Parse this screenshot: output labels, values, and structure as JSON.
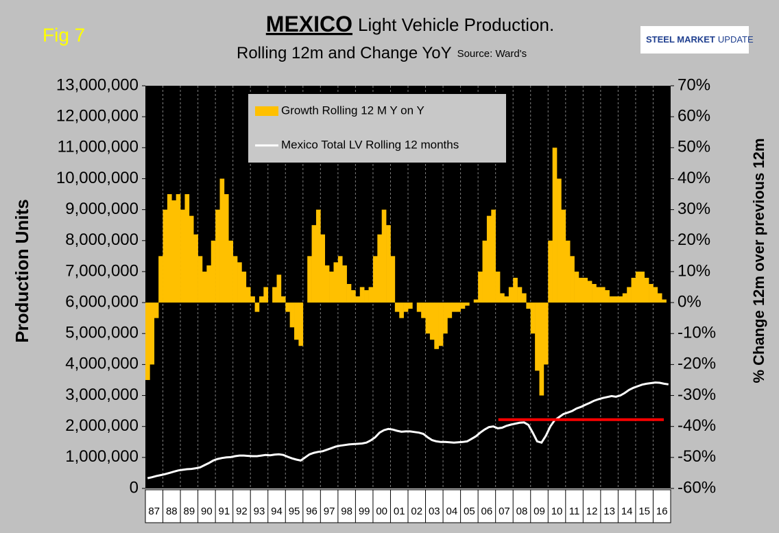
{
  "figure_label": "Fig 7",
  "logo": [
    "STEEL MARKET",
    "UPDATE"
  ],
  "chart_data": {
    "type": "combo",
    "title": [
      "MEXICO",
      "Light Vehicle Production."
    ],
    "subtitle": "Rolling 12m and Change YoY",
    "source": "Source: Ward's",
    "y_label": "Production Units",
    "y2_label": "% Change 12m over previous 12m",
    "categories": [
      "87",
      null,
      null,
      null,
      "88",
      null,
      null,
      null,
      "89",
      null,
      null,
      null,
      "90",
      null,
      null,
      null,
      "91",
      null,
      null,
      null,
      "92",
      null,
      null,
      null,
      "93",
      null,
      null,
      null,
      "94",
      null,
      null,
      null,
      "95",
      null,
      null,
      null,
      "96",
      null,
      null,
      null,
      "97",
      null,
      null,
      null,
      "98",
      null,
      null,
      null,
      "99",
      null,
      null,
      null,
      "00",
      null,
      null,
      null,
      "01",
      null,
      null,
      null,
      "02",
      null,
      null,
      null,
      "03",
      null,
      null,
      null,
      "04",
      null,
      null,
      null,
      "05",
      null,
      null,
      null,
      "06",
      null,
      null,
      null,
      "07",
      null,
      null,
      null,
      "08",
      null,
      null,
      null,
      "09",
      null,
      null,
      null,
      "10",
      null,
      null,
      null,
      "11",
      null,
      null,
      null,
      "12",
      null,
      null,
      null,
      "13",
      null,
      null,
      null,
      "14",
      null,
      null,
      null,
      "15",
      null,
      null,
      null,
      "16",
      null,
      null,
      null
    ],
    "series": [
      {
        "name": "Growth Rolling 12 M Y on Y",
        "type": "bar",
        "axis": "y2",
        "color": "#ffc000",
        "values": [
          -25,
          -20,
          -5,
          15,
          30,
          35,
          33,
          35,
          30,
          35,
          28,
          22,
          15,
          10,
          12,
          20,
          30,
          40,
          35,
          20,
          15,
          13,
          10,
          5,
          2,
          -3,
          2,
          5,
          0,
          5,
          9,
          2,
          -3,
          -8,
          -12,
          -14,
          0,
          15,
          25,
          30,
          22,
          12,
          10,
          13,
          15,
          12,
          6,
          4,
          2,
          5,
          4,
          5,
          15,
          22,
          30,
          25,
          15,
          -3,
          -5,
          -3,
          -2,
          0,
          -3,
          -5,
          -10,
          -12,
          -15,
          -14,
          -10,
          -5,
          -3,
          -3,
          -2,
          -1,
          0,
          1,
          10,
          20,
          28,
          30,
          10,
          3,
          2,
          5,
          8,
          5,
          3,
          -2,
          -10,
          -22,
          -30,
          -20,
          20,
          50,
          40,
          30,
          20,
          15,
          10,
          8,
          8,
          7,
          6,
          5,
          5,
          4,
          2,
          2,
          2,
          3,
          5,
          8,
          10,
          10,
          8,
          6,
          5,
          3,
          1,
          0
        ]
      },
      {
        "name": "Mexico Total LV Rolling 12 months",
        "type": "line",
        "color": "#ffffff",
        "values": [
          330000,
          360000,
          400000,
          430000,
          460000,
          500000,
          540000,
          580000,
          600000,
          620000,
          630000,
          650000,
          680000,
          750000,
          820000,
          900000,
          950000,
          980000,
          1000000,
          1010000,
          1040000,
          1060000,
          1060000,
          1050000,
          1040000,
          1040000,
          1060000,
          1080000,
          1070000,
          1090000,
          1100000,
          1080000,
          1020000,
          970000,
          930000,
          900000,
          1000000,
          1100000,
          1150000,
          1180000,
          1200000,
          1250000,
          1300000,
          1350000,
          1380000,
          1400000,
          1420000,
          1430000,
          1440000,
          1450000,
          1480000,
          1550000,
          1650000,
          1800000,
          1880000,
          1920000,
          1900000,
          1860000,
          1830000,
          1840000,
          1840000,
          1820000,
          1800000,
          1760000,
          1650000,
          1560000,
          1520000,
          1500000,
          1500000,
          1490000,
          1480000,
          1490000,
          1500000,
          1520000,
          1600000,
          1680000,
          1800000,
          1900000,
          1980000,
          2000000,
          1940000,
          1960000,
          2020000,
          2060000,
          2090000,
          2120000,
          2130000,
          2050000,
          1800000,
          1520000,
          1480000,
          1700000,
          2000000,
          2200000,
          2300000,
          2400000,
          2450000,
          2500000,
          2580000,
          2630000,
          2700000,
          2760000,
          2830000,
          2880000,
          2920000,
          2950000,
          2980000,
          2960000,
          3000000,
          3080000,
          3180000,
          3250000,
          3300000,
          3350000,
          3380000,
          3400000,
          3420000,
          3410000,
          3380000,
          3360000
        ]
      }
    ],
    "reference_lines": [
      {
        "value": 2220000,
        "color": "#ff0000"
      }
    ],
    "ylim": [
      0,
      13000000
    ],
    "yticks": [
      0,
      {
        "value": 1000000,
        "label": "1,000,000"
      },
      {
        "value": 2000000,
        "label": "2,000,000"
      },
      {
        "value": 3000000,
        "label": "3,000,000"
      },
      {
        "value": 4000000,
        "label": "4,000,000"
      },
      {
        "value": 5000000,
        "label": "5,000,000"
      },
      {
        "value": 6000000,
        "label": "6,000,000"
      },
      {
        "value": 7000000,
        "label": "7,000,000"
      },
      {
        "value": 8000000,
        "label": "8,000,000"
      },
      {
        "value": 9000000,
        "label": "9,000,000"
      },
      {
        "value": 10000000,
        "label": "10,000,000"
      },
      {
        "value": 11000000,
        "label": "11,000,000"
      },
      {
        "value": 12000000,
        "label": "12,000,000"
      },
      {
        "value": 13000000,
        "label": "13,000,000"
      }
    ],
    "y2lim": [
      -60,
      70
    ],
    "y2ticks": [
      {
        "value": -60,
        "label": "-60%"
      },
      {
        "value": -50,
        "label": "-50%"
      },
      {
        "value": -40,
        "label": "-40%"
      },
      {
        "value": -30,
        "label": "-30%"
      },
      {
        "value": -20,
        "label": "-20%"
      },
      {
        "value": -10,
        "label": "-10%"
      },
      {
        "value": 0,
        "label": "0%"
      },
      {
        "value": 10,
        "label": "10%"
      },
      {
        "value": 20,
        "label": "20%"
      },
      {
        "value": 30,
        "label": "30%"
      },
      {
        "value": 40,
        "label": "40%"
      },
      {
        "value": 50,
        "label": "50%"
      },
      {
        "value": 60,
        "label": "60%"
      },
      {
        "value": 70,
        "label": "70%"
      }
    ],
    "legend_position": "upper center",
    "plot_background": "#000000"
  }
}
